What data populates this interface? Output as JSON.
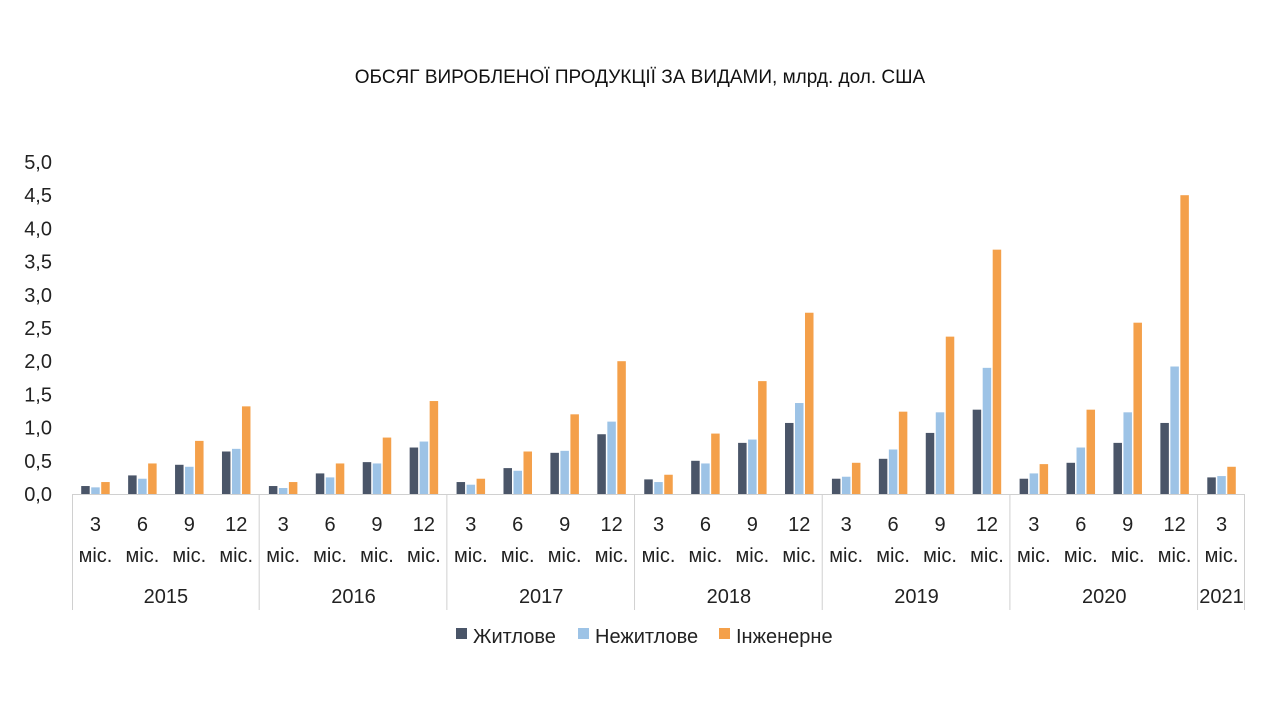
{
  "chart_data": {
    "type": "bar",
    "title": "ОБСЯГ ВИРОБЛЕНОЇ ПРОДУКЦІЇ ЗА ВИДАМИ, млрд. дол. США",
    "ylim": [
      0,
      5
    ],
    "yticks": [
      "0,0",
      "0,5",
      "1,0",
      "1,5",
      "2,0",
      "2,5",
      "3,0",
      "3,5",
      "4,0",
      "4,5",
      "5,0"
    ],
    "grid": false,
    "legend_position": "bottom",
    "category_lines": [
      [
        "3",
        "міс."
      ],
      [
        "6",
        "міс."
      ],
      [
        "9",
        "міс."
      ],
      [
        "12",
        "міс."
      ]
    ],
    "groups": [
      {
        "label": "2015",
        "size": 4
      },
      {
        "label": "2016",
        "size": 4
      },
      {
        "label": "2017",
        "size": 4
      },
      {
        "label": "2018",
        "size": 4
      },
      {
        "label": "2019",
        "size": 4
      },
      {
        "label": "2020",
        "size": 4
      },
      {
        "label": "2021",
        "size": 1
      }
    ],
    "series": [
      {
        "name": "Житлове",
        "color": "#4a5568",
        "values": [
          0.12,
          0.28,
          0.44,
          0.64,
          0.12,
          0.31,
          0.48,
          0.7,
          0.18,
          0.39,
          0.62,
          0.9,
          0.22,
          0.5,
          0.77,
          1.07,
          0.23,
          0.53,
          0.92,
          1.27,
          0.23,
          0.47,
          0.77,
          1.07,
          0.25
        ]
      },
      {
        "name": "Нежитлове",
        "color": "#9dc3e6",
        "values": [
          0.1,
          0.23,
          0.41,
          0.68,
          0.09,
          0.25,
          0.46,
          0.79,
          0.14,
          0.35,
          0.65,
          1.09,
          0.18,
          0.46,
          0.82,
          1.37,
          0.26,
          0.67,
          1.23,
          1.9,
          0.31,
          0.7,
          1.23,
          1.92,
          0.27
        ]
      },
      {
        "name": "Інженерне",
        "color": "#f4a04a",
        "values": [
          0.18,
          0.46,
          0.8,
          1.32,
          0.18,
          0.46,
          0.85,
          1.4,
          0.23,
          0.64,
          1.2,
          2.0,
          0.29,
          0.91,
          1.7,
          2.73,
          0.47,
          1.24,
          2.37,
          3.68,
          0.45,
          1.27,
          2.58,
          4.5,
          0.41
        ]
      }
    ]
  }
}
